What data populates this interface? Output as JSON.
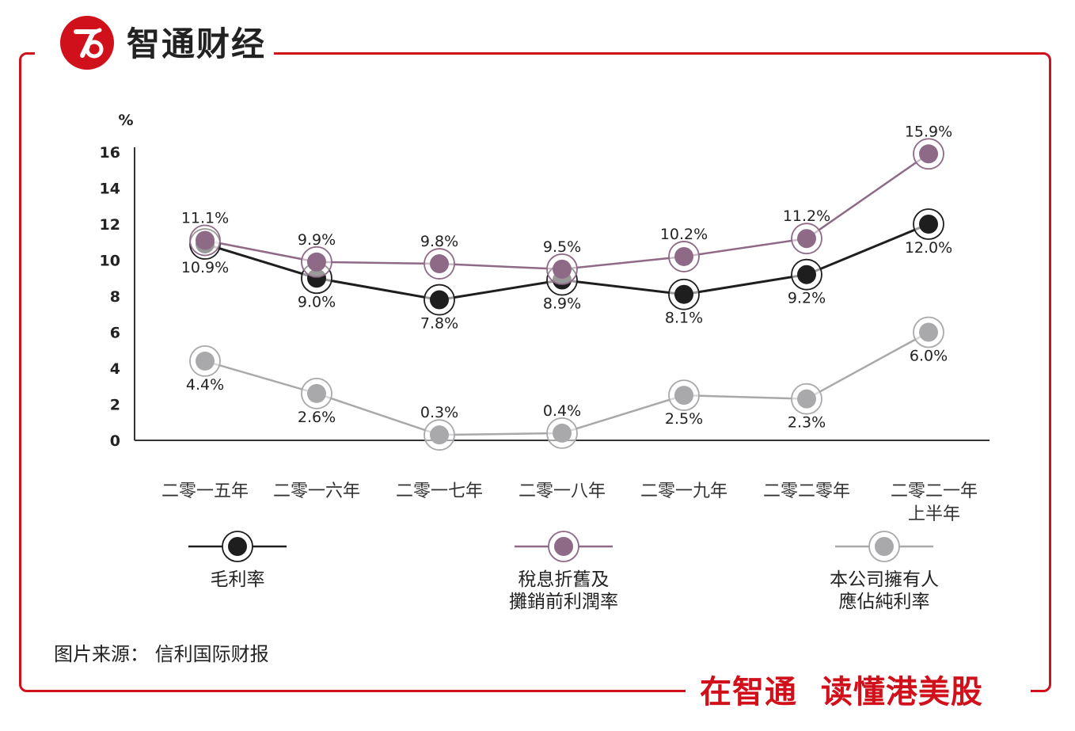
{
  "brand": {
    "name": "智通财经",
    "slogan": "在智通  读懂港美股"
  },
  "source": "图片来源： 信利国际财报",
  "colors": {
    "brand_red": "#d0111b",
    "gross": "#1e1e1e",
    "ebitda": "#8e6a87",
    "net": "#a9a9ac"
  },
  "chart_data": {
    "type": "line",
    "unit_label": "%",
    "ylim": [
      0,
      16
    ],
    "yticks": [
      0,
      2,
      4,
      6,
      8,
      10,
      12,
      14,
      16
    ],
    "categories": [
      [
        "二零一五年"
      ],
      [
        "二零一六年"
      ],
      [
        "二零一七年"
      ],
      [
        "二零一八年"
      ],
      [
        "二零一九年"
      ],
      [
        "二零二零年"
      ],
      [
        "二零二一年",
        "上半年"
      ]
    ],
    "series": [
      {
        "key": "gross",
        "name": [
          "毛利率"
        ],
        "values": [
          10.9,
          9.0,
          7.8,
          8.9,
          8.1,
          9.2,
          12.0
        ],
        "labels": [
          "10.9%",
          "9.0%",
          "7.8%",
          "8.9%",
          "8.1%",
          "9.2%",
          "12.0%"
        ]
      },
      {
        "key": "ebitda",
        "name": [
          "稅息折舊及",
          "攤銷前利潤率"
        ],
        "values": [
          11.1,
          9.9,
          9.8,
          9.5,
          10.2,
          11.2,
          15.9
        ],
        "labels": [
          "11.1%",
          "9.9%",
          "9.8%",
          "9.5%",
          "10.2%",
          "11.2%",
          "15.9%"
        ]
      },
      {
        "key": "net",
        "name": [
          "本公司擁有人",
          "應佔純利率"
        ],
        "values": [
          4.4,
          2.6,
          0.3,
          0.4,
          2.5,
          2.3,
          6.0
        ],
        "labels": [
          "4.4%",
          "2.6%",
          "0.3%",
          "0.4%",
          "2.5%",
          "2.3%",
          "6.0%"
        ]
      }
    ]
  }
}
